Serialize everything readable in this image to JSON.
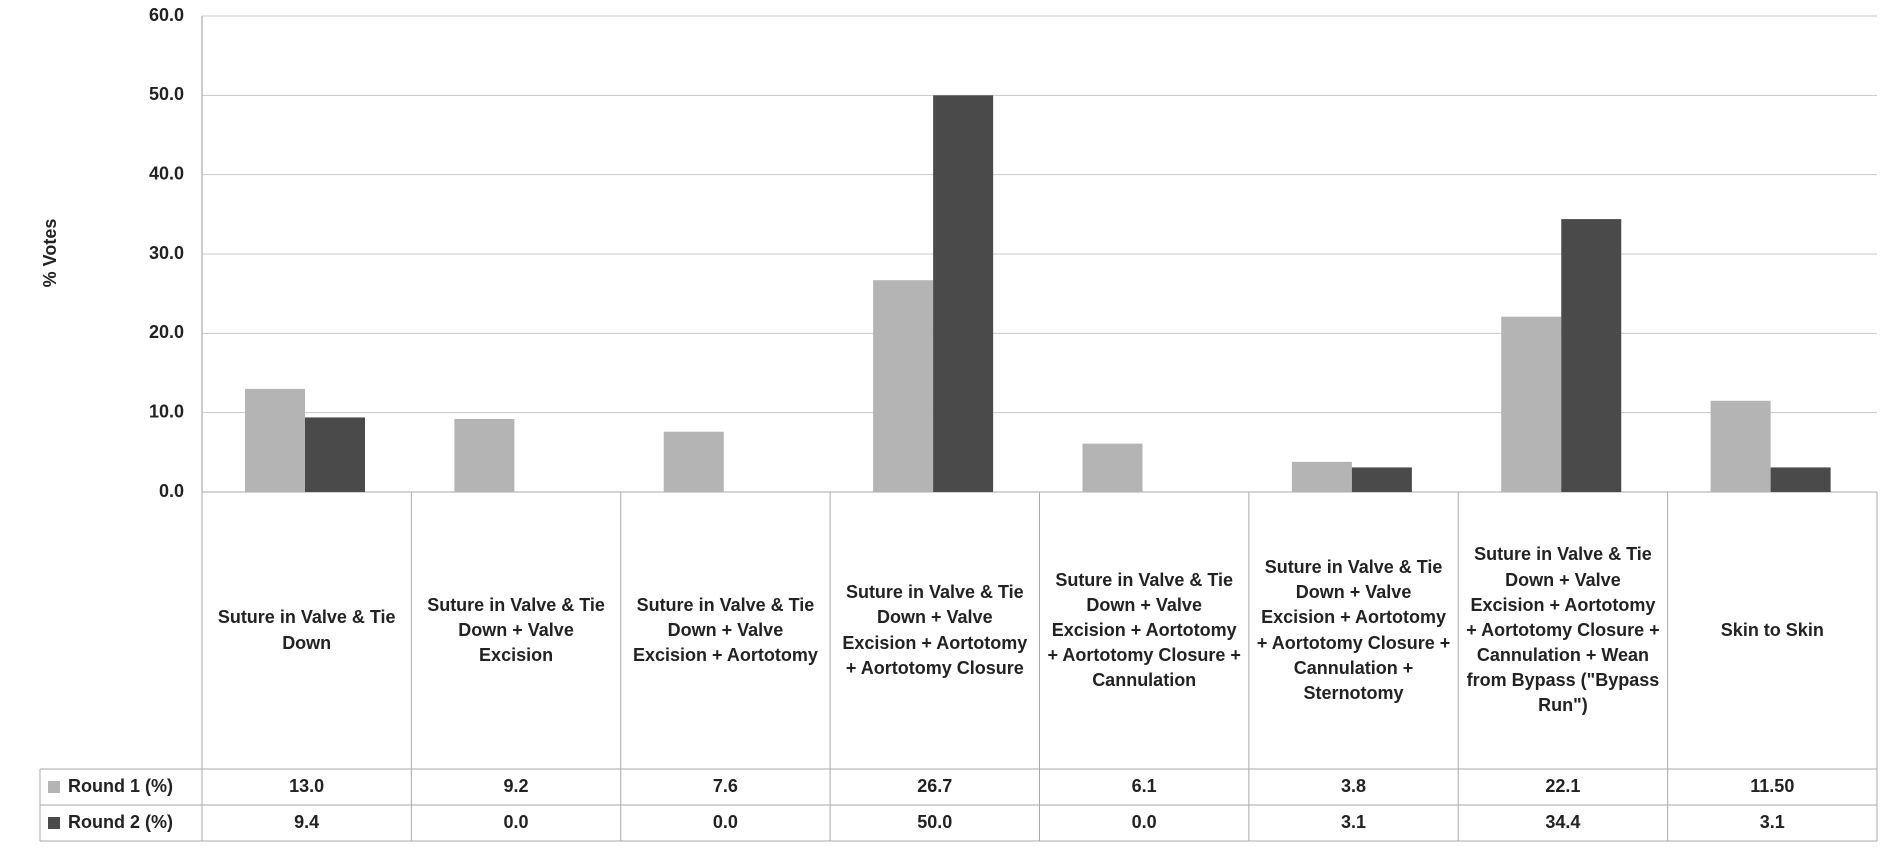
{
  "chart_data": {
    "type": "bar",
    "y_label": "% Votes",
    "categories": [
      "Suture in Valve & Tie Down",
      "Suture in Valve & Tie Down + Valve Excision",
      "Suture in Valve & Tie Down + Valve Excision + Aortotomy",
      "Suture in Valve & Tie Down + Valve Excision + Aortotomy + Aortotomy Closure",
      "Suture in Valve & Tie Down + Valve Excision + Aortotomy + Aortotomy Closure + Cannulation",
      "Suture in Valve & Tie Down + Valve Excision + Aortotomy + Aortotomy Closure + Cannulation + Sternotomy",
      "Suture in Valve & Tie Down + Valve Excision + Aortotomy + Aortotomy Closure + Cannulation + Wean from Bypass (\"Bypass Run\")",
      "Skin to Skin"
    ],
    "series": [
      {
        "name": "Round 1 (%)",
        "color": "#b4b4b4",
        "values": [
          13.0,
          9.2,
          7.6,
          26.7,
          6.1,
          3.8,
          22.1,
          11.5
        ],
        "value_labels": [
          "13.0",
          "9.2",
          "7.6",
          "26.7",
          "6.1",
          "3.8",
          "22.1",
          "11.50"
        ]
      },
      {
        "name": "Round 2 (%)",
        "color": "#4a4a4a",
        "values": [
          9.4,
          0.0,
          0.0,
          50.0,
          0.0,
          3.1,
          34.4,
          3.1
        ],
        "value_labels": [
          "9.4",
          "0.0",
          "0.0",
          "50.0",
          "0.0",
          "3.1",
          "34.4",
          "3.1"
        ]
      }
    ],
    "ylim": [
      0,
      60
    ],
    "yticks": [
      {
        "value": 0,
        "label": "0.0"
      },
      {
        "value": 10,
        "label": "10.0"
      },
      {
        "value": 20,
        "label": "20.0"
      },
      {
        "value": 30,
        "label": "30.0"
      },
      {
        "value": 40,
        "label": "40.0"
      },
      {
        "value": 50,
        "label": "50.0"
      },
      {
        "value": 60,
        "label": "60.0"
      }
    ],
    "grid": true
  }
}
